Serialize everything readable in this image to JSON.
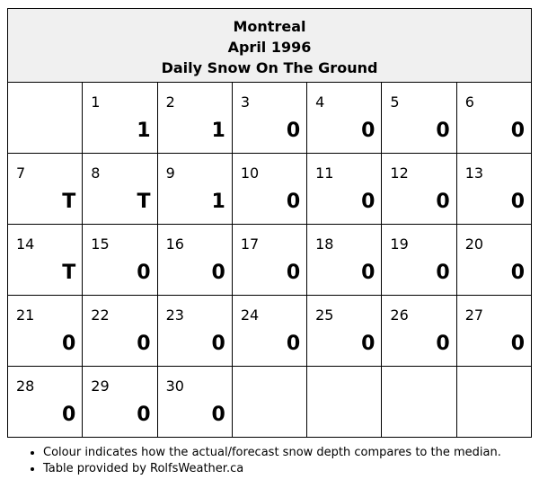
{
  "header": {
    "city": "Montreal",
    "month": "April 1996",
    "subtitle": "Daily Snow On The Ground"
  },
  "colors": {
    "above_median": "#c00000",
    "normal": "#ece6e6",
    "blank": "#ffffff"
  },
  "weeks": [
    [
      null,
      {
        "day": "1",
        "value": "1",
        "highlight": true
      },
      {
        "day": "2",
        "value": "1",
        "highlight": true
      },
      {
        "day": "3",
        "value": "0",
        "highlight": false
      },
      {
        "day": "4",
        "value": "0",
        "highlight": false
      },
      {
        "day": "5",
        "value": "0",
        "highlight": false
      },
      {
        "day": "6",
        "value": "0",
        "highlight": false
      }
    ],
    [
      {
        "day": "7",
        "value": "T",
        "highlight": false
      },
      {
        "day": "8",
        "value": "T",
        "highlight": false
      },
      {
        "day": "9",
        "value": "1",
        "highlight": true
      },
      {
        "day": "10",
        "value": "0",
        "highlight": false
      },
      {
        "day": "11",
        "value": "0",
        "highlight": false
      },
      {
        "day": "12",
        "value": "0",
        "highlight": false
      },
      {
        "day": "13",
        "value": "0",
        "highlight": false
      }
    ],
    [
      {
        "day": "14",
        "value": "T",
        "highlight": false
      },
      {
        "day": "15",
        "value": "0",
        "highlight": false
      },
      {
        "day": "16",
        "value": "0",
        "highlight": false
      },
      {
        "day": "17",
        "value": "0",
        "highlight": false
      },
      {
        "day": "18",
        "value": "0",
        "highlight": false
      },
      {
        "day": "19",
        "value": "0",
        "highlight": false
      },
      {
        "day": "20",
        "value": "0",
        "highlight": false
      }
    ],
    [
      {
        "day": "21",
        "value": "0",
        "highlight": false
      },
      {
        "day": "22",
        "value": "0",
        "highlight": false
      },
      {
        "day": "23",
        "value": "0",
        "highlight": false
      },
      {
        "day": "24",
        "value": "0",
        "highlight": false
      },
      {
        "day": "25",
        "value": "0",
        "highlight": false
      },
      {
        "day": "26",
        "value": "0",
        "highlight": false
      },
      {
        "day": "27",
        "value": "0",
        "highlight": false
      }
    ],
    [
      {
        "day": "28",
        "value": "0",
        "highlight": false
      },
      {
        "day": "29",
        "value": "0",
        "highlight": false
      },
      {
        "day": "30",
        "value": "0",
        "highlight": false
      },
      null,
      null,
      null,
      null
    ]
  ],
  "notes": [
    "Colour indicates how the actual/forecast snow depth compares to the median.",
    "Table provided by RolfsWeather.ca"
  ]
}
